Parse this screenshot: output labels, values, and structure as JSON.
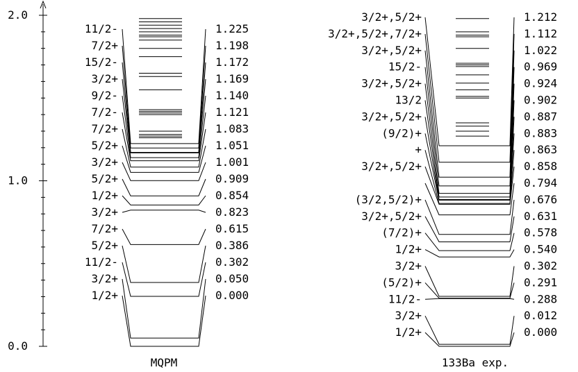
{
  "axis": {
    "ticks": [
      {
        "value": 0.0,
        "label": "0.0"
      },
      {
        "value": 1.0,
        "label": "1.0"
      },
      {
        "value": 2.0,
        "label": "2.0"
      }
    ]
  },
  "schemes": [
    {
      "id": "mqpm",
      "caption": "MQPM",
      "levels": [
        {
          "energy": 0.0,
          "spin": "1/2+",
          "value": "0.000"
        },
        {
          "energy": 0.05,
          "spin": "3/2+",
          "value": "0.050"
        },
        {
          "energy": 0.302,
          "spin": "11/2-",
          "value": "0.302"
        },
        {
          "energy": 0.386,
          "spin": "5/2+",
          "value": "0.386"
        },
        {
          "energy": 0.615,
          "spin": "7/2+",
          "value": "0.615"
        },
        {
          "energy": 0.823,
          "spin": "3/2+",
          "value": "0.823"
        },
        {
          "energy": 0.854,
          "spin": "1/2+",
          "value": "0.854"
        },
        {
          "energy": 0.909,
          "spin": "5/2+",
          "value": "0.909"
        },
        {
          "energy": 1.001,
          "spin": "3/2+",
          "value": "1.001"
        },
        {
          "energy": 1.051,
          "spin": "5/2+",
          "value": "1.051"
        },
        {
          "energy": 1.083,
          "spin": "7/2+",
          "value": "1.083"
        },
        {
          "energy": 1.121,
          "spin": "7/2-",
          "value": "1.121"
        },
        {
          "energy": 1.14,
          "spin": "9/2-",
          "value": "1.140"
        },
        {
          "energy": 1.169,
          "spin": "3/2+",
          "value": "1.169"
        },
        {
          "energy": 1.172,
          "spin": "15/2-",
          "value": "1.172"
        },
        {
          "energy": 1.198,
          "spin": "7/2+",
          "value": "1.198"
        },
        {
          "energy": 1.225,
          "spin": "11/2-",
          "value": "1.225"
        }
      ],
      "upper_lines": [
        1.26,
        1.27,
        1.28,
        1.3,
        1.4,
        1.41,
        1.42,
        1.43,
        1.55,
        1.63,
        1.65,
        1.75,
        1.8,
        1.85,
        1.87,
        1.88,
        1.9,
        1.92,
        1.94,
        1.96,
        1.98
      ]
    },
    {
      "id": "exp",
      "caption": "133Ba exp.",
      "levels": [
        {
          "energy": 0.0,
          "spin": "1/2+",
          "value": "0.000"
        },
        {
          "energy": 0.012,
          "spin": "3/2+",
          "value": "0.012"
        },
        {
          "energy": 0.288,
          "spin": "11/2-",
          "value": "0.288"
        },
        {
          "energy": 0.291,
          "spin": "(5/2)+",
          "value": "0.291"
        },
        {
          "energy": 0.302,
          "spin": "3/2+",
          "value": "0.302"
        },
        {
          "energy": 0.54,
          "spin": "1/2+",
          "value": "0.540"
        },
        {
          "energy": 0.578,
          "spin": "(7/2)+",
          "value": "0.578"
        },
        {
          "energy": 0.631,
          "spin": "3/2+,5/2+",
          "value": "0.631"
        },
        {
          "energy": 0.676,
          "spin": "(3/2,5/2)+",
          "value": "0.676"
        },
        {
          "energy": 0.794,
          "spin": "",
          "value": "0.794"
        },
        {
          "energy": 0.858,
          "spin": "3/2+,5/2+",
          "value": "0.858"
        },
        {
          "energy": 0.863,
          "spin": "+",
          "value": "0.863"
        },
        {
          "energy": 0.883,
          "spin": "(9/2)+",
          "value": "0.883"
        },
        {
          "energy": 0.887,
          "spin": "3/2+,5/2+",
          "value": "0.887"
        },
        {
          "energy": 0.902,
          "spin": "13/2",
          "value": "0.902"
        },
        {
          "energy": 0.924,
          "spin": "3/2+,5/2+",
          "value": "0.924"
        },
        {
          "energy": 0.969,
          "spin": "15/2-",
          "value": "0.969"
        },
        {
          "energy": 1.022,
          "spin": "3/2+,5/2+",
          "value": "1.022"
        },
        {
          "energy": 1.112,
          "spin": "3/2+,5/2+,7/2+",
          "value": "1.112"
        },
        {
          "energy": 1.212,
          "spin": "3/2+,5/2+",
          "value": "1.212"
        }
      ],
      "upper_lines": [
        1.27,
        1.3,
        1.33,
        1.35,
        1.5,
        1.51,
        1.55,
        1.59,
        1.64,
        1.69,
        1.7,
        1.71,
        1.8,
        1.87,
        1.88,
        1.9,
        1.98
      ]
    }
  ]
}
